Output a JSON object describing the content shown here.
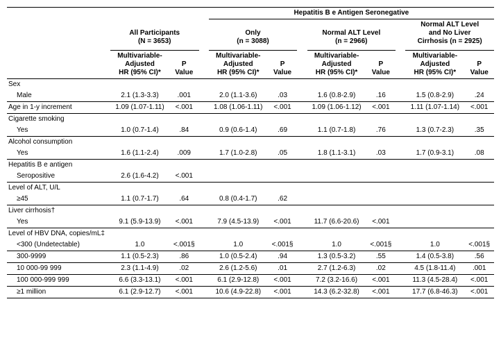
{
  "header": {
    "spanner_top": "Hepatitis B e Antigen Seronegative",
    "groups": {
      "all": {
        "title": "All Participants",
        "n": "(N = 3653)"
      },
      "only": {
        "title": "Only",
        "n": "(n = 3088)"
      },
      "normal_alt": {
        "title": "Normal ALT Level",
        "n": "(n = 2966)"
      },
      "normal_alt_nocirr": {
        "title": "Normal ALT Level\nand No Liver\nCirrhosis (n = 2925)"
      }
    },
    "sub": {
      "hr": "Multivariable-\nAdjusted\nHR (95% CI)*",
      "p": "P\nValue"
    }
  },
  "rows": [
    {
      "label": "Sex",
      "indent": false,
      "rule": false
    },
    {
      "label": "Male",
      "indent": true,
      "rule": true,
      "c": [
        "2.1 (1.3-3.3)",
        ".001",
        "2.0 (1.1-3.6)",
        ".03",
        "1.6 (0.8-2.9)",
        ".16",
        "1.5 (0.8-2.9)",
        ".24"
      ]
    },
    {
      "label": "Age in 1-y increment",
      "indent": false,
      "rule": true,
      "c": [
        "1.09 (1.07-1.11)",
        "<.001",
        "1.08 (1.06-1.11)",
        "<.001",
        "1.09 (1.06-1.12)",
        "<.001",
        "1.11 (1.07-1.14)",
        "<.001"
      ]
    },
    {
      "label": "Cigarette smoking",
      "indent": false,
      "rule": false
    },
    {
      "label": "Yes",
      "indent": true,
      "rule": true,
      "c": [
        "1.0 (0.7-1.4)",
        ".84",
        "0.9 (0.6-1.4)",
        ".69",
        "1.1 (0.7-1.8)",
        ".76",
        "1.3 (0.7-2.3)",
        ".35"
      ]
    },
    {
      "label": "Alcohol consumption",
      "indent": false,
      "rule": false
    },
    {
      "label": "Yes",
      "indent": true,
      "rule": true,
      "c": [
        "1.6 (1.1-2.4)",
        ".009",
        "1.7 (1.0-2.8)",
        ".05",
        "1.8 (1.1-3.1)",
        ".03",
        "1.7 (0.9-3.1)",
        ".08"
      ]
    },
    {
      "label": "Hepatitis B e antigen",
      "indent": false,
      "rule": false
    },
    {
      "label": "Seropositive",
      "indent": true,
      "rule": true,
      "c": [
        "2.6 (1.6-4.2)",
        "<.001",
        "",
        "",
        "",
        "",
        "",
        ""
      ]
    },
    {
      "label": "Level of ALT, U/L",
      "indent": false,
      "rule": false
    },
    {
      "label": "≥45",
      "indent": true,
      "rule": true,
      "c": [
        "1.1 (0.7-1.7)",
        ".64",
        "0.8 (0.4-1.7)",
        ".62",
        "",
        "",
        "",
        ""
      ]
    },
    {
      "label": "Liver cirrhosis†",
      "indent": false,
      "rule": false
    },
    {
      "label": "Yes",
      "indent": true,
      "rule": true,
      "c": [
        "9.1 (5.9-13.9)",
        "<.001",
        "7.9 (4.5-13.9)",
        "<.001",
        "11.7 (6.6-20.6)",
        "<.001",
        "",
        ""
      ]
    },
    {
      "label": "Level of HBV DNA, copies/mL‡",
      "indent": false,
      "rule": false
    },
    {
      "label": "<300 (Undetectable)",
      "indent": true,
      "rule": true,
      "c": [
        "1.0",
        "<.001§",
        "1.0",
        "<.001§",
        "1.0",
        "<.001§",
        "1.0",
        "<.001§"
      ]
    },
    {
      "label": "300-9999",
      "indent": true,
      "rule": true,
      "c": [
        "1.1 (0.5-2.3)",
        ".86",
        "1.0 (0.5-2.4)",
        ".94",
        "1.3 (0.5-3.2)",
        ".55",
        "1.4 (0.5-3.8)",
        ".56"
      ]
    },
    {
      "label": "10 000-99 999",
      "indent": true,
      "rule": true,
      "c": [
        "2.3 (1.1-4.9)",
        ".02",
        "2.6 (1.2-5.6)",
        ".01",
        "2.7 (1.2-6.3)",
        ".02",
        "4.5 (1.8-11.4)",
        ".001"
      ]
    },
    {
      "label": "100 000-999 999",
      "indent": true,
      "rule": true,
      "c": [
        "6.6 (3.3-13.1)",
        "<.001",
        "6.1 (2.9-12.8)",
        "<.001",
        "7.2 (3.2-16.6)",
        "<.001",
        "11.3 (4.5-28.4)",
        "<.001"
      ]
    },
    {
      "label": "≥1 million",
      "indent": true,
      "rule": true,
      "bot": true,
      "c": [
        "6.1 (2.9-12.7)",
        "<.001",
        "10.6 (4.9-22.8)",
        "<.001",
        "14.3 (6.2-32.8)",
        "<.001",
        "17.7 (6.8-46.3)",
        "<.001"
      ]
    }
  ],
  "style": {
    "font_size_body": 10,
    "font_size_header": 10,
    "text_color": "#000000",
    "bg_color": "#ffffff",
    "rule_color": "#000000",
    "col_widths_pct": [
      21,
      12,
      6,
      2,
      12,
      6,
      2,
      12,
      6,
      2,
      12,
      6
    ]
  }
}
